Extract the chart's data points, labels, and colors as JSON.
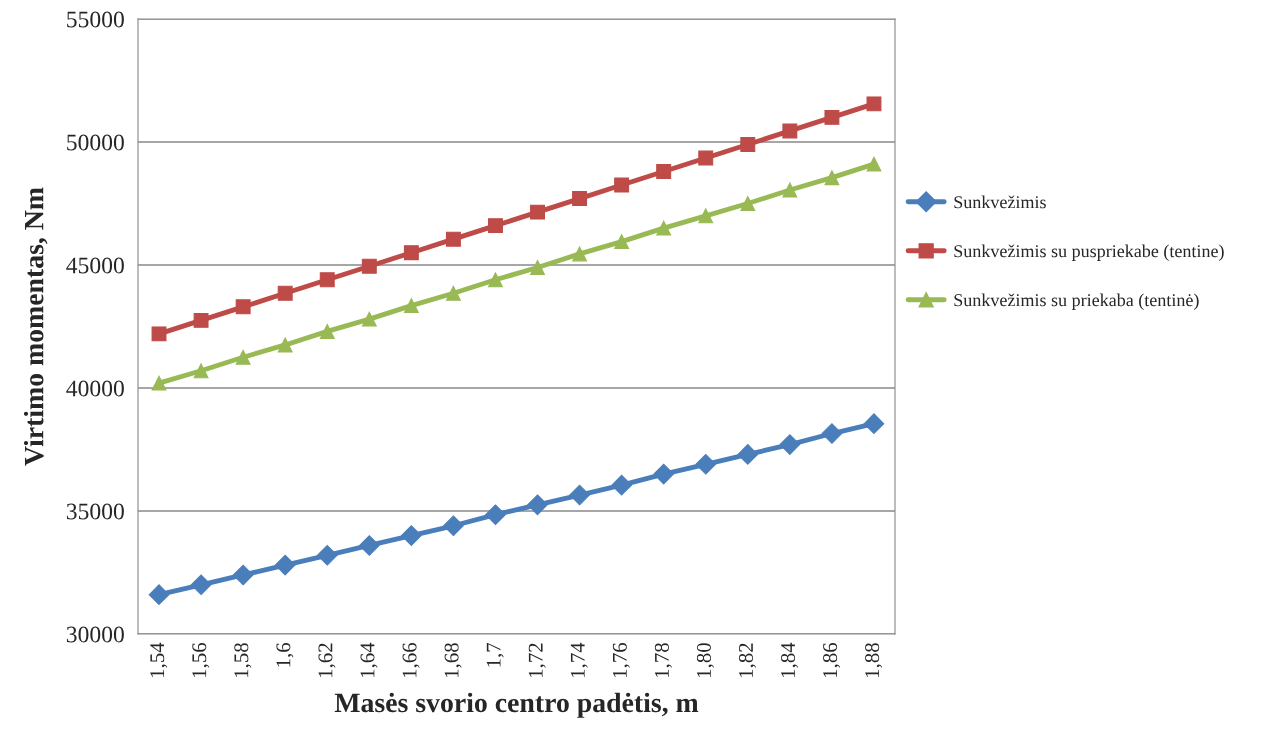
{
  "chart_data": {
    "type": "line",
    "xlabel": "Masės svorio centro padėtis, m",
    "ylabel": "Virtimo momentas, Nm",
    "categories": [
      "1,54",
      "1,56",
      "1,58",
      "1,6",
      "1,62",
      "1,64",
      "1,66",
      "1,68",
      "1,7",
      "1,72",
      "1,74",
      "1,76",
      "1,78",
      "1,80",
      "1,82",
      "1,84",
      "1,86",
      "1,88"
    ],
    "series": [
      {
        "name": "Sunkvežimis",
        "color": "#4a7ebb",
        "marker": "diamond",
        "values": [
          31600,
          32000,
          32400,
          32800,
          33200,
          33600,
          34000,
          34400,
          34850,
          35250,
          35650,
          36050,
          36500,
          36900,
          37300,
          37700,
          38150,
          38550
        ]
      },
      {
        "name": "Sunkvežimis su puspriekabe (tentine)",
        "color": "#be4b48",
        "marker": "square",
        "values": [
          42200,
          42750,
          43300,
          43850,
          44400,
          44950,
          45500,
          46050,
          46600,
          47150,
          47700,
          48250,
          48800,
          49350,
          49900,
          50450,
          51000,
          51550
        ]
      },
      {
        "name": "Sunkvežimis su priekaba (tentinė)",
        "color": "#98b954",
        "marker": "triangle",
        "values": [
          40200,
          40700,
          41250,
          41750,
          42300,
          42800,
          43350,
          43850,
          44400,
          44900,
          45450,
          45950,
          46500,
          47000,
          47500,
          48050,
          48550,
          49100
        ]
      }
    ],
    "ylim": [
      30000,
      55000
    ],
    "yticks": [
      30000,
      35000,
      40000,
      45000,
      50000,
      55000
    ],
    "grid": "y",
    "legend": "right"
  }
}
